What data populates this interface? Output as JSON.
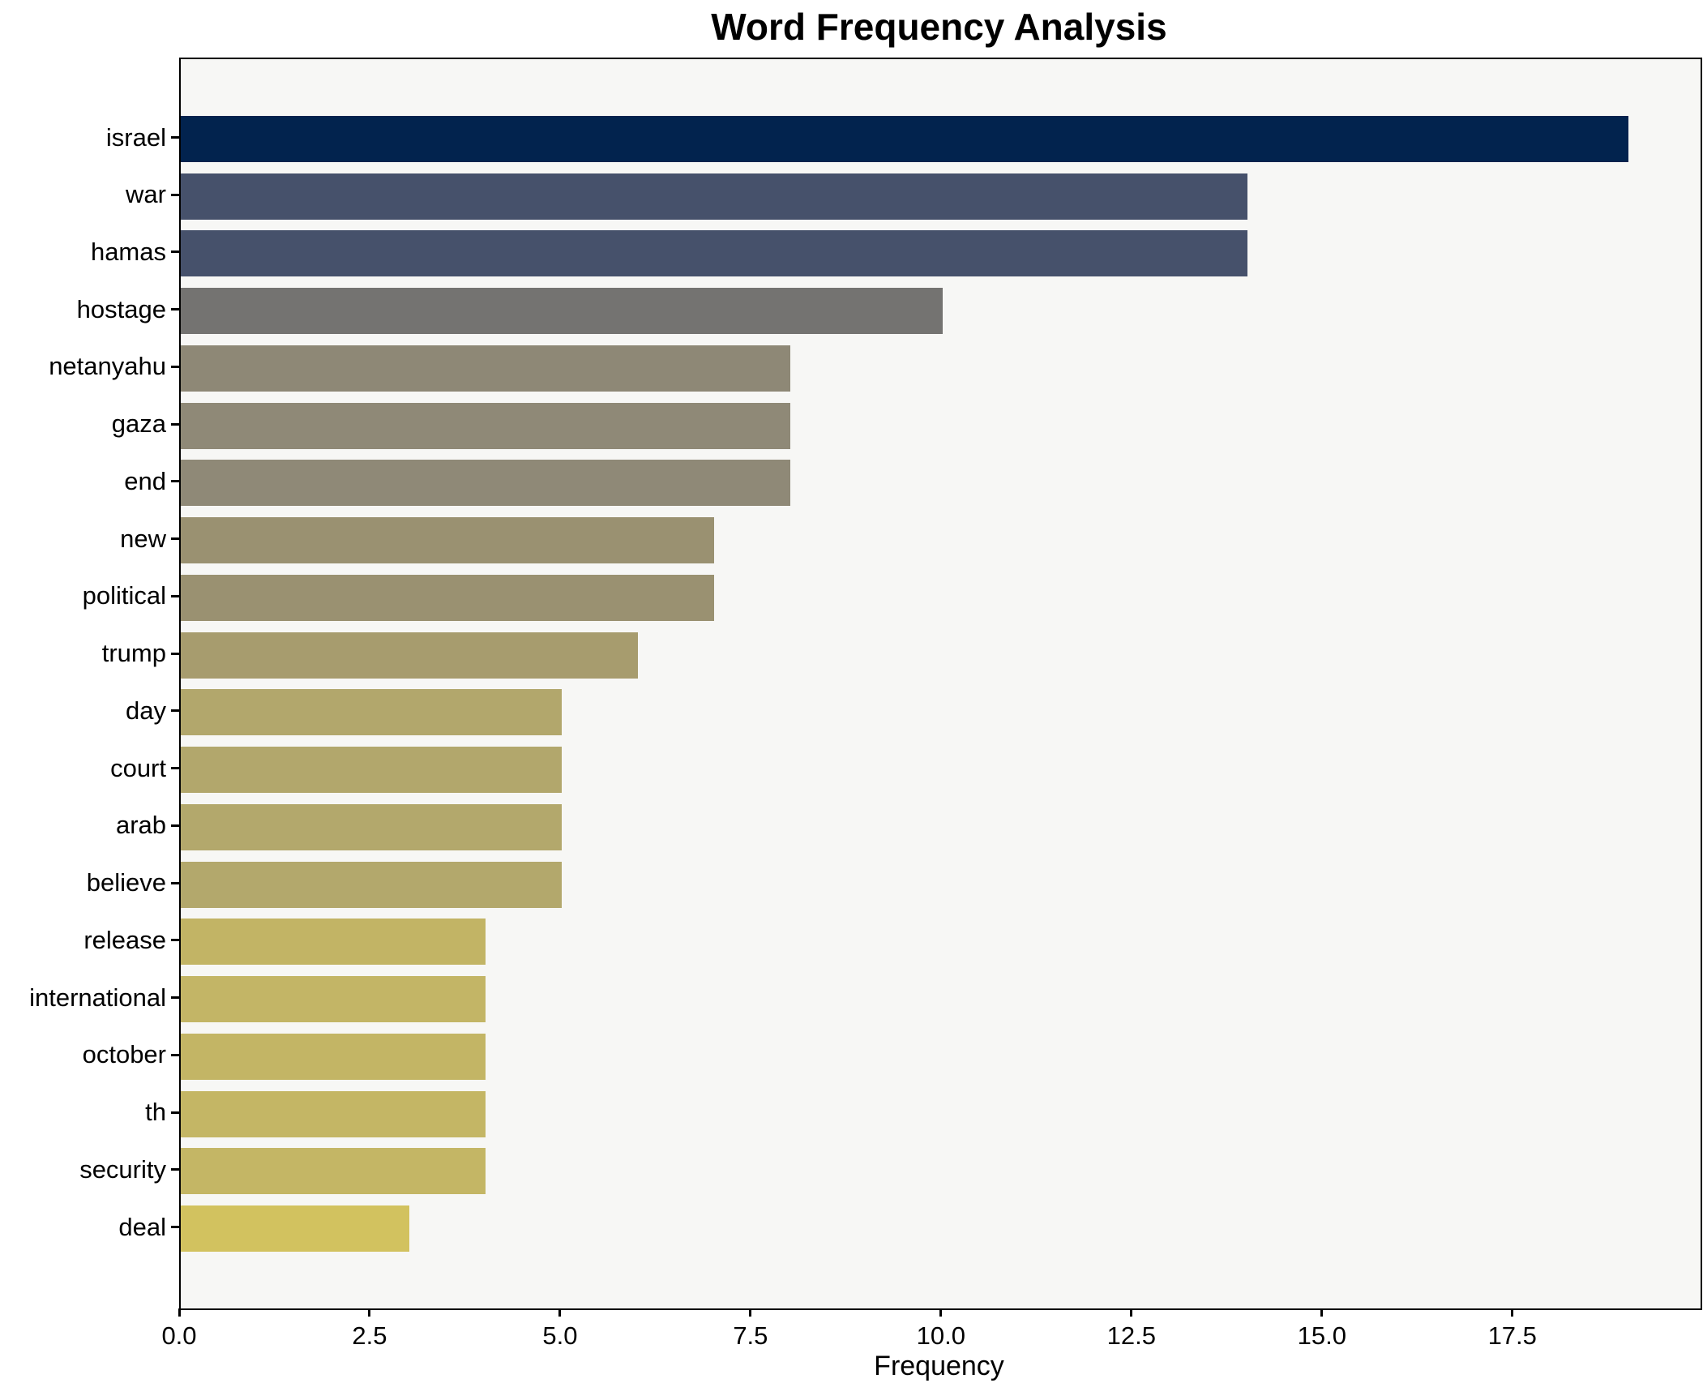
{
  "title": "Word Frequency Analysis",
  "xlabel": "Frequency",
  "chart_data": {
    "type": "bar",
    "orientation": "horizontal",
    "title": "Word Frequency Analysis",
    "xlabel": "Frequency",
    "ylabel": "",
    "categories": [
      "israel",
      "war",
      "hamas",
      "hostage",
      "netanyahu",
      "gaza",
      "end",
      "new",
      "political",
      "trump",
      "day",
      "court",
      "arab",
      "believe",
      "release",
      "international",
      "october",
      "th",
      "security",
      "deal"
    ],
    "values": [
      19,
      14,
      14,
      10,
      8,
      8,
      8,
      7,
      7,
      6,
      5,
      5,
      5,
      5,
      4,
      4,
      4,
      4,
      4,
      3
    ],
    "bar_colors": [
      "#02234e",
      "#46516b",
      "#46516b",
      "#747371",
      "#8e8876",
      "#8f8977",
      "#8f8977",
      "#9a9171",
      "#9a9171",
      "#a79c6e",
      "#b2a76c",
      "#b2a76c",
      "#b3a86c",
      "#b3a86c",
      "#c2b465",
      "#c3b566",
      "#c3b565",
      "#c4b665",
      "#c4b665",
      "#d2c25f"
    ],
    "xlim": [
      0,
      19.95
    ],
    "x_ticks": [
      0,
      2.5,
      5,
      7.5,
      10,
      12.5,
      15,
      17.5
    ],
    "x_tick_labels": [
      "0.0",
      "2.5",
      "5.0",
      "7.5",
      "10.0",
      "12.5",
      "15.0",
      "17.5"
    ],
    "grid": false,
    "legend": false,
    "colormap": "cividis",
    "plot_bg": "#f7f7f5",
    "figure_bg": "#ffffff"
  }
}
